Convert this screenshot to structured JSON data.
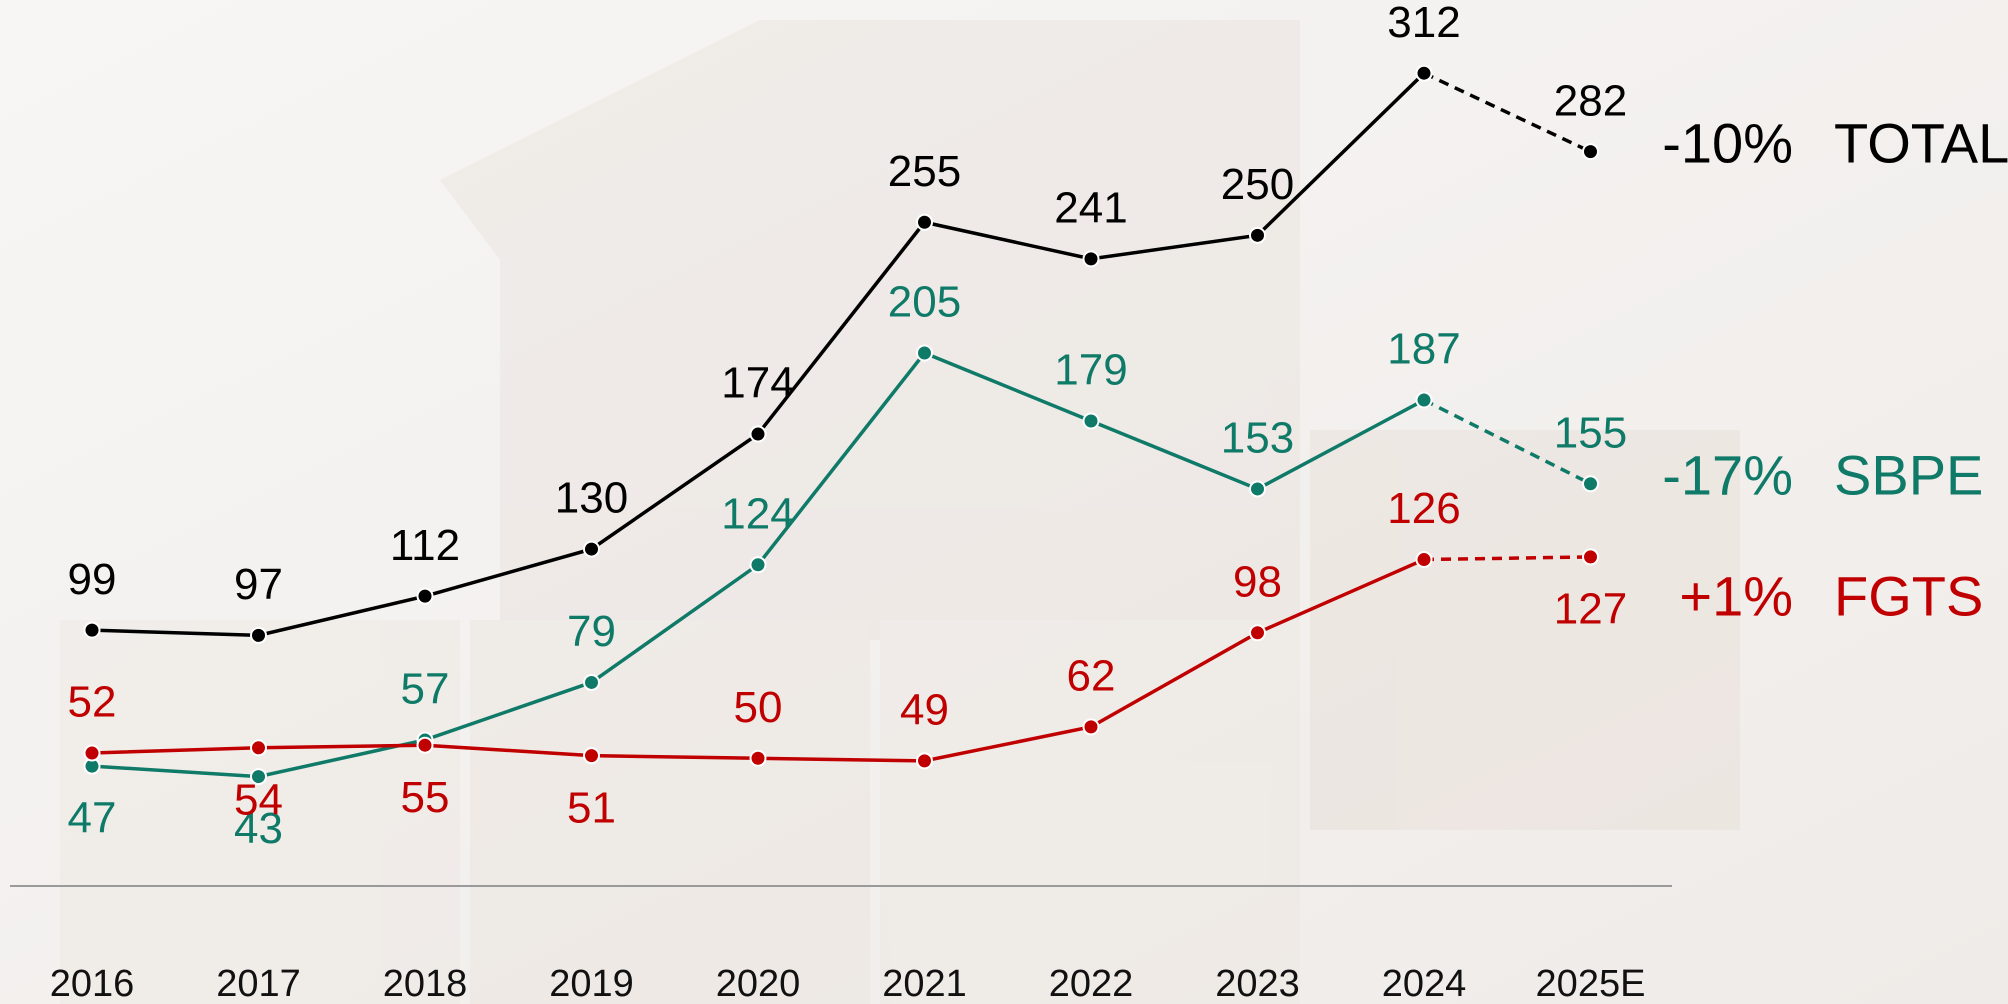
{
  "chart_data": {
    "type": "line",
    "categories": [
      "2016",
      "2017",
      "2018",
      "2019",
      "2020",
      "2021",
      "2022",
      "2023",
      "2024",
      "2025E"
    ],
    "series": [
      {
        "name": "TOTAL",
        "change": "-10%",
        "color": "#000000",
        "values": [
          99,
          97,
          112,
          130,
          174,
          255,
          241,
          250,
          312,
          282
        ]
      },
      {
        "name": "SBPE",
        "change": "-17%",
        "color": "#0f7a68",
        "values": [
          47,
          43,
          57,
          79,
          124,
          205,
          179,
          153,
          187,
          155
        ]
      },
      {
        "name": "FGTS",
        "change": "+1%",
        "color": "#c00000",
        "values": [
          52,
          54,
          55,
          51,
          50,
          49,
          62,
          98,
          126,
          127
        ]
      }
    ],
    "ylim": [
      0,
      340
    ],
    "dashed_last_segment": true
  }
}
